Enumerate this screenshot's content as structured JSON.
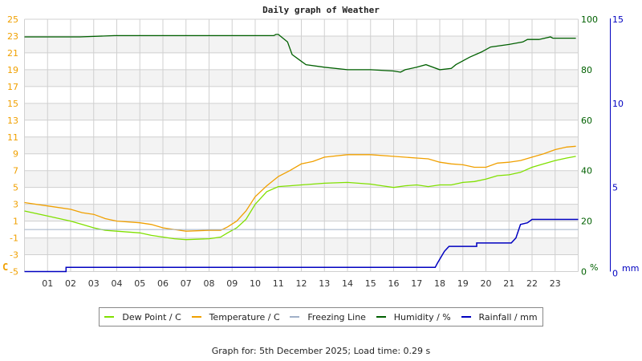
{
  "title": "Daily graph of Weather",
  "footer": "Graph for: 5th December 2025; Load time: 0.29 s",
  "colors": {
    "dew_point": "#80e000",
    "temperature": "#f0a000",
    "freezing": "#a0b0c8",
    "humidity": "#006000",
    "rainfall": "#0000c0",
    "left_axis": "#f0a000",
    "hum_axis": "#006000",
    "rain_axis": "#0000c0",
    "grid": "#d0d0d0",
    "band": "#f3f3f3"
  },
  "legend": [
    {
      "label": "Dew Point / C",
      "key": "dew_point"
    },
    {
      "label": "Temperature / C",
      "key": "temperature"
    },
    {
      "label": "Freezing Line",
      "key": "freezing"
    },
    {
      "label": "Humidity / %",
      "key": "humidity"
    },
    {
      "label": "Rainfall / mm",
      "key": "rainfall"
    }
  ],
  "axes": {
    "left_unit": "C",
    "hum_unit": "%",
    "rain_unit": "mm"
  },
  "chart_data": {
    "type": "line",
    "title": "Daily graph of Weather",
    "xlabel": "",
    "x_ticks": [
      "01",
      "02",
      "03",
      "04",
      "05",
      "06",
      "07",
      "08",
      "09",
      "10",
      "11",
      "12",
      "13",
      "14",
      "15",
      "16",
      "17",
      "18",
      "19",
      "20",
      "21",
      "22",
      "23"
    ],
    "xlim": [
      0,
      24
    ],
    "left_axis": {
      "label": "C",
      "ylim": [
        -5,
        25
      ],
      "ticks": [
        25,
        23,
        21,
        19,
        17,
        15,
        13,
        11,
        9,
        7,
        5,
        3,
        1,
        -1,
        -3,
        -5
      ]
    },
    "humidity_axis": {
      "label": "%",
      "ylim": [
        0,
        100
      ],
      "ticks": [
        100,
        80,
        60,
        40,
        20,
        0
      ]
    },
    "rain_axis": {
      "label": "mm",
      "ylim": [
        0,
        15
      ],
      "ticks": [
        15,
        10,
        5,
        0
      ]
    },
    "grid": true,
    "legend_position": "bottom",
    "series": [
      {
        "name": "Temperature / C",
        "axis": "left",
        "key": "temperature",
        "x": [
          0,
          1,
          2,
          2.5,
          3,
          3.5,
          4,
          5,
          5.5,
          6,
          6.5,
          7,
          8,
          8.5,
          8.8,
          9.2,
          9.6,
          10,
          10.5,
          11,
          11.5,
          12,
          12.5,
          13,
          14,
          15,
          16,
          17,
          17.5,
          18,
          18.5,
          19,
          19.5,
          20,
          20.5,
          21,
          21.5,
          22,
          22.5,
          23,
          23.5,
          23.9
        ],
        "y": [
          3.2,
          2.8,
          2.4,
          2.0,
          1.8,
          1.3,
          1.0,
          0.8,
          0.6,
          0.2,
          0.0,
          -0.2,
          -0.1,
          -0.1,
          0.3,
          1.0,
          2.2,
          3.9,
          5.2,
          6.3,
          7.0,
          7.8,
          8.1,
          8.6,
          8.9,
          8.9,
          8.7,
          8.5,
          8.4,
          8.0,
          7.8,
          7.7,
          7.4,
          7.4,
          7.9,
          8.0,
          8.2,
          8.6,
          9.0,
          9.5,
          9.8,
          9.9
        ]
      },
      {
        "name": "Dew Point / C",
        "axis": "left",
        "key": "dew_point",
        "x": [
          0,
          1,
          2,
          2.5,
          3,
          3.5,
          4,
          5,
          5.5,
          6,
          6.5,
          7,
          8,
          8.5,
          8.8,
          9.2,
          9.6,
          10,
          10.5,
          11,
          11.5,
          12,
          13,
          14,
          15,
          15.5,
          16,
          16.5,
          17,
          17.5,
          18,
          18.5,
          19,
          19.5,
          20,
          20.5,
          21,
          21.5,
          22,
          22.5,
          23,
          23.5,
          23.9
        ],
        "y": [
          2.2,
          1.6,
          1.0,
          0.6,
          0.2,
          -0.1,
          -0.2,
          -0.4,
          -0.7,
          -0.9,
          -1.1,
          -1.2,
          -1.1,
          -0.9,
          -0.4,
          0.2,
          1.2,
          3.0,
          4.5,
          5.1,
          5.2,
          5.3,
          5.5,
          5.6,
          5.4,
          5.2,
          5.0,
          5.2,
          5.3,
          5.1,
          5.3,
          5.3,
          5.6,
          5.7,
          6.0,
          6.4,
          6.5,
          6.8,
          7.4,
          7.8,
          8.2,
          8.5,
          8.7
        ]
      },
      {
        "name": "Freezing Line",
        "axis": "left",
        "key": "freezing",
        "x": [
          0,
          24
        ],
        "y": [
          0,
          0
        ]
      },
      {
        "name": "Humidity / %",
        "axis": "humidity",
        "key": "humidity",
        "x": [
          0,
          2.4,
          3.9,
          4.5,
          10.8,
          10.9,
          11,
          11.4,
          11.6,
          11.9,
          12.2,
          13,
          14,
          15,
          16,
          16.3,
          16.5,
          17,
          17.4,
          18,
          18.5,
          18.7,
          19.3,
          19.8,
          20.2,
          21,
          21.6,
          21.8,
          22.3,
          22.8,
          22.9,
          23.9
        ],
        "y": [
          93,
          93,
          93.5,
          93.5,
          93.5,
          94,
          94,
          91,
          86,
          84,
          82,
          81,
          80,
          80,
          79.5,
          79,
          80,
          81,
          82,
          80,
          80.5,
          82,
          85,
          87,
          89,
          90,
          91,
          92,
          92,
          93,
          92.5,
          92.5
        ]
      },
      {
        "name": "Rainfall / mm",
        "axis": "rain",
        "key": "rainfall",
        "x": [
          0,
          1.8,
          1.8,
          17.8,
          17.9,
          18.2,
          18.4,
          19.6,
          19.6,
          21.1,
          21.3,
          21.5,
          21.8,
          22,
          24
        ],
        "y": [
          0,
          0,
          0.25,
          0.25,
          0.5,
          1.2,
          1.5,
          1.5,
          1.7,
          1.7,
          2.0,
          2.8,
          2.9,
          3.1,
          3.1
        ]
      }
    ]
  }
}
